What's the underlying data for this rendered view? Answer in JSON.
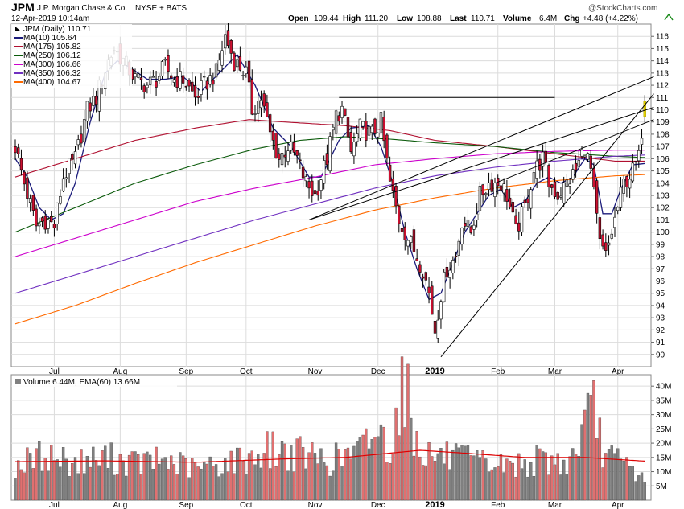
{
  "header": {
    "symbol": "JPM",
    "company": "J.P. Morgan Chase & Co.",
    "exchange": "NYSE + BATS",
    "timestamp": "12-Apr-2019 10:14am",
    "watermark": "@StockCharts.com",
    "quote": {
      "open_label": "Open",
      "open": "109.44",
      "high_label": "High",
      "high": "111.20",
      "low_label": "Low",
      "low": "108.88",
      "last_label": "Last",
      "last": "110.71",
      "volume_label": "Volume",
      "volume": "6.4M",
      "chg_label": "Chg",
      "chg": "+4.48 (+4.22%)"
    }
  },
  "colors": {
    "up_candle": "#ffffff",
    "down_candle": "#cc1030",
    "candle_edge": "#000000",
    "grid": "#dcdcdc",
    "volume_up": "#808080",
    "volume_down": "#e07070",
    "ema_volume": "#dd0000",
    "trendline": "#000000",
    "today_candle": "#e8d800"
  },
  "chart_data": [
    {
      "type": "candlestick",
      "title": "JPM (Daily) 110.71",
      "legend": [
        {
          "label": "MA(10) 105.64",
          "color": "#1a1a7a"
        },
        {
          "label": "MA(175) 105.82",
          "color": "#b01030"
        },
        {
          "label": "MA(250) 106.12",
          "color": "#0a5a0a"
        },
        {
          "label": "MA(300) 106.66",
          "color": "#cc00cc"
        },
        {
          "label": "MA(350) 106.32",
          "color": "#7030c0"
        },
        {
          "label": "MA(400) 104.67",
          "color": "#ff6a00"
        }
      ],
      "ylim": [
        89,
        117
      ],
      "y_ticks": [
        90,
        91,
        92,
        93,
        94,
        95,
        96,
        97,
        98,
        99,
        100,
        101,
        102,
        103,
        104,
        105,
        106,
        107,
        108,
        109,
        110,
        111,
        112,
        113,
        114,
        115,
        116
      ],
      "x_labels": [
        {
          "label": "Jul",
          "day": 13
        },
        {
          "label": "Aug",
          "day": 35
        },
        {
          "label": "Sep",
          "day": 57
        },
        {
          "label": "Oct",
          "day": 77
        },
        {
          "label": "Nov",
          "day": 100
        },
        {
          "label": "Dec",
          "day": 121
        },
        {
          "label": "2019",
          "day": 140
        },
        {
          "label": "Feb",
          "day": 161
        },
        {
          "label": "Mar",
          "day": 180
        },
        {
          "label": "Apr",
          "day": 201
        }
      ],
      "series_anchors": {
        "close": [
          [
            0,
            107
          ],
          [
            3,
            104
          ],
          [
            7,
            100.5
          ],
          [
            10,
            101
          ],
          [
            13,
            100.5
          ],
          [
            16,
            104.5
          ],
          [
            20,
            106
          ],
          [
            24,
            110
          ],
          [
            27,
            111
          ],
          [
            31,
            114
          ],
          [
            33,
            115
          ],
          [
            36,
            114
          ],
          [
            40,
            112.5
          ],
          [
            44,
            112
          ],
          [
            47,
            112.5
          ],
          [
            50,
            113.5
          ],
          [
            53,
            112.5
          ],
          [
            56,
            112.5
          ],
          [
            60,
            111
          ],
          [
            63,
            112
          ],
          [
            67,
            113
          ],
          [
            70,
            116
          ],
          [
            73,
            114
          ],
          [
            77,
            113
          ],
          [
            79,
            110
          ],
          [
            82,
            111
          ],
          [
            85,
            108
          ],
          [
            88,
            106
          ],
          [
            91,
            107
          ],
          [
            94,
            106
          ],
          [
            97,
            104
          ],
          [
            100,
            103
          ],
          [
            104,
            106
          ],
          [
            107,
            109.5
          ],
          [
            109,
            110
          ],
          [
            112,
            106.5
          ],
          [
            115,
            108.5
          ],
          [
            119,
            108
          ],
          [
            122,
            109
          ],
          [
            125,
            104
          ],
          [
            128,
            101
          ],
          [
            132,
            99
          ],
          [
            136,
            97
          ],
          [
            138,
            95
          ],
          [
            140,
            92
          ],
          [
            142,
            95
          ],
          [
            144,
            97
          ],
          [
            147,
            98
          ],
          [
            149,
            101
          ],
          [
            152,
            100
          ],
          [
            155,
            103
          ],
          [
            158,
            104
          ],
          [
            162,
            104
          ],
          [
            164,
            103
          ],
          [
            167,
            100
          ],
          [
            170,
            102
          ],
          [
            173,
            105
          ],
          [
            176,
            106
          ],
          [
            178,
            104
          ],
          [
            181,
            103
          ],
          [
            184,
            104
          ],
          [
            187,
            105
          ],
          [
            190,
            107
          ],
          [
            192,
            105
          ],
          [
            195,
            99
          ],
          [
            197,
            98
          ],
          [
            199,
            100
          ],
          [
            201,
            102
          ],
          [
            203,
            104
          ],
          [
            206,
            105
          ],
          [
            208,
            106
          ],
          [
            210,
            110.7
          ]
        ],
        "volume": [
          [
            0,
            12
          ],
          [
            5,
            14
          ],
          [
            10,
            16
          ],
          [
            20,
            13
          ],
          [
            30,
            15
          ],
          [
            40,
            13
          ],
          [
            50,
            14
          ],
          [
            60,
            11
          ],
          [
            70,
            13
          ],
          [
            78,
            15
          ],
          [
            85,
            18
          ],
          [
            95,
            16
          ],
          [
            105,
            14
          ],
          [
            115,
            17
          ],
          [
            120,
            25
          ],
          [
            125,
            19
          ],
          [
            128,
            35
          ],
          [
            130,
            42
          ],
          [
            133,
            22
          ],
          [
            138,
            16
          ],
          [
            145,
            15
          ],
          [
            155,
            13
          ],
          [
            165,
            12
          ],
          [
            175,
            14
          ],
          [
            185,
            13
          ],
          [
            190,
            26
          ],
          [
            193,
            31
          ],
          [
            197,
            15
          ],
          [
            205,
            12
          ],
          [
            210,
            6.4
          ]
        ],
        "ma10": [
          [
            0,
            106
          ],
          [
            4,
            104.5
          ],
          [
            8,
            102
          ],
          [
            12,
            101
          ],
          [
            16,
            101.5
          ],
          [
            20,
            104
          ],
          [
            25,
            109
          ],
          [
            30,
            113
          ],
          [
            34,
            114
          ],
          [
            38,
            113.5
          ],
          [
            44,
            112.5
          ],
          [
            50,
            112.5
          ],
          [
            56,
            112.7
          ],
          [
            62,
            111.5
          ],
          [
            68,
            113
          ],
          [
            74,
            114.5
          ],
          [
            80,
            112
          ],
          [
            86,
            108.5
          ],
          [
            92,
            107
          ],
          [
            98,
            104.5
          ],
          [
            102,
            104.5
          ],
          [
            108,
            107.5
          ],
          [
            112,
            108.5
          ],
          [
            118,
            108.7
          ],
          [
            122,
            107
          ],
          [
            126,
            104
          ],
          [
            130,
            100
          ],
          [
            134,
            97
          ],
          [
            138,
            94.5
          ],
          [
            142,
            95
          ],
          [
            146,
            97.5
          ],
          [
            150,
            100
          ],
          [
            154,
            101.5
          ],
          [
            158,
            103
          ],
          [
            162,
            103.5
          ],
          [
            166,
            102
          ],
          [
            170,
            102.5
          ],
          [
            174,
            104
          ],
          [
            178,
            104.5
          ],
          [
            182,
            104
          ],
          [
            186,
            104.5
          ],
          [
            190,
            106
          ],
          [
            193,
            105.5
          ],
          [
            196,
            101.5
          ],
          [
            199,
            101.5
          ],
          [
            202,
            103.5
          ],
          [
            206,
            105.5
          ],
          [
            210,
            105.6
          ]
        ],
        "ma175": [
          [
            0,
            104.5
          ],
          [
            20,
            106
          ],
          [
            40,
            107.5
          ],
          [
            60,
            108.5
          ],
          [
            78,
            109.2
          ],
          [
            90,
            109
          ],
          [
            110,
            108.7
          ],
          [
            125,
            108.3
          ],
          [
            140,
            107.5
          ],
          [
            160,
            107
          ],
          [
            180,
            106.4
          ],
          [
            200,
            105.8
          ],
          [
            210,
            105.8
          ]
        ],
        "ma250": [
          [
            0,
            100
          ],
          [
            20,
            102
          ],
          [
            40,
            104
          ],
          [
            60,
            105.5
          ],
          [
            80,
            106.8
          ],
          [
            95,
            107.5
          ],
          [
            110,
            107.8
          ],
          [
            125,
            107.6
          ],
          [
            140,
            107.3
          ],
          [
            160,
            107
          ],
          [
            180,
            106.5
          ],
          [
            200,
            106.2
          ],
          [
            210,
            106.1
          ]
        ],
        "ma300": [
          [
            0,
            98
          ],
          [
            20,
            99.5
          ],
          [
            40,
            101
          ],
          [
            60,
            102.5
          ],
          [
            80,
            103.6
          ],
          [
            100,
            104.5
          ],
          [
            120,
            105.5
          ],
          [
            140,
            106
          ],
          [
            160,
            106.4
          ],
          [
            180,
            106.6
          ],
          [
            200,
            106.7
          ],
          [
            210,
            106.7
          ]
        ],
        "ma350": [
          [
            0,
            95
          ],
          [
            20,
            96.5
          ],
          [
            40,
            98
          ],
          [
            60,
            99.5
          ],
          [
            80,
            101
          ],
          [
            100,
            102.3
          ],
          [
            120,
            103.6
          ],
          [
            140,
            104.6
          ],
          [
            160,
            105.3
          ],
          [
            180,
            105.8
          ],
          [
            200,
            106.2
          ],
          [
            210,
            106.3
          ]
        ],
        "ma400": [
          [
            0,
            92.5
          ],
          [
            20,
            94
          ],
          [
            40,
            95.8
          ],
          [
            60,
            97.5
          ],
          [
            80,
            99
          ],
          [
            100,
            100.5
          ],
          [
            120,
            101.8
          ],
          [
            140,
            102.8
          ],
          [
            160,
            103.6
          ],
          [
            180,
            104.2
          ],
          [
            200,
            104.6
          ],
          [
            210,
            104.7
          ]
        ]
      },
      "trendlines": [
        {
          "d0": 108,
          "v0": 111,
          "d1": 180,
          "v1": 111
        },
        {
          "d0": 98,
          "v0": 101,
          "d1": 213,
          "v1": 112.7
        },
        {
          "d0": 98,
          "v0": 101,
          "d1": 213,
          "v1": 110.2
        },
        {
          "d0": 142,
          "v0": 89.8,
          "d1": 213,
          "v1": 111.3
        },
        {
          "d0": 160,
          "v0": 104,
          "d1": 213,
          "v1": 109.2
        }
      ]
    },
    {
      "type": "bar",
      "title": "Volume 6.44M, EMA(60) 13.66M",
      "unit": "M",
      "ylim": [
        0,
        44
      ],
      "y_ticks": [
        5,
        10,
        15,
        20,
        25,
        30,
        35,
        40
      ],
      "ema60_anchors": [
        [
          0,
          13.5
        ],
        [
          30,
          13.8
        ],
        [
          60,
          13.3
        ],
        [
          90,
          14.5
        ],
        [
          110,
          15
        ],
        [
          125,
          16.5
        ],
        [
          135,
          17.5
        ],
        [
          150,
          16.5
        ],
        [
          170,
          15
        ],
        [
          190,
          15
        ],
        [
          210,
          13.7
        ]
      ]
    }
  ]
}
